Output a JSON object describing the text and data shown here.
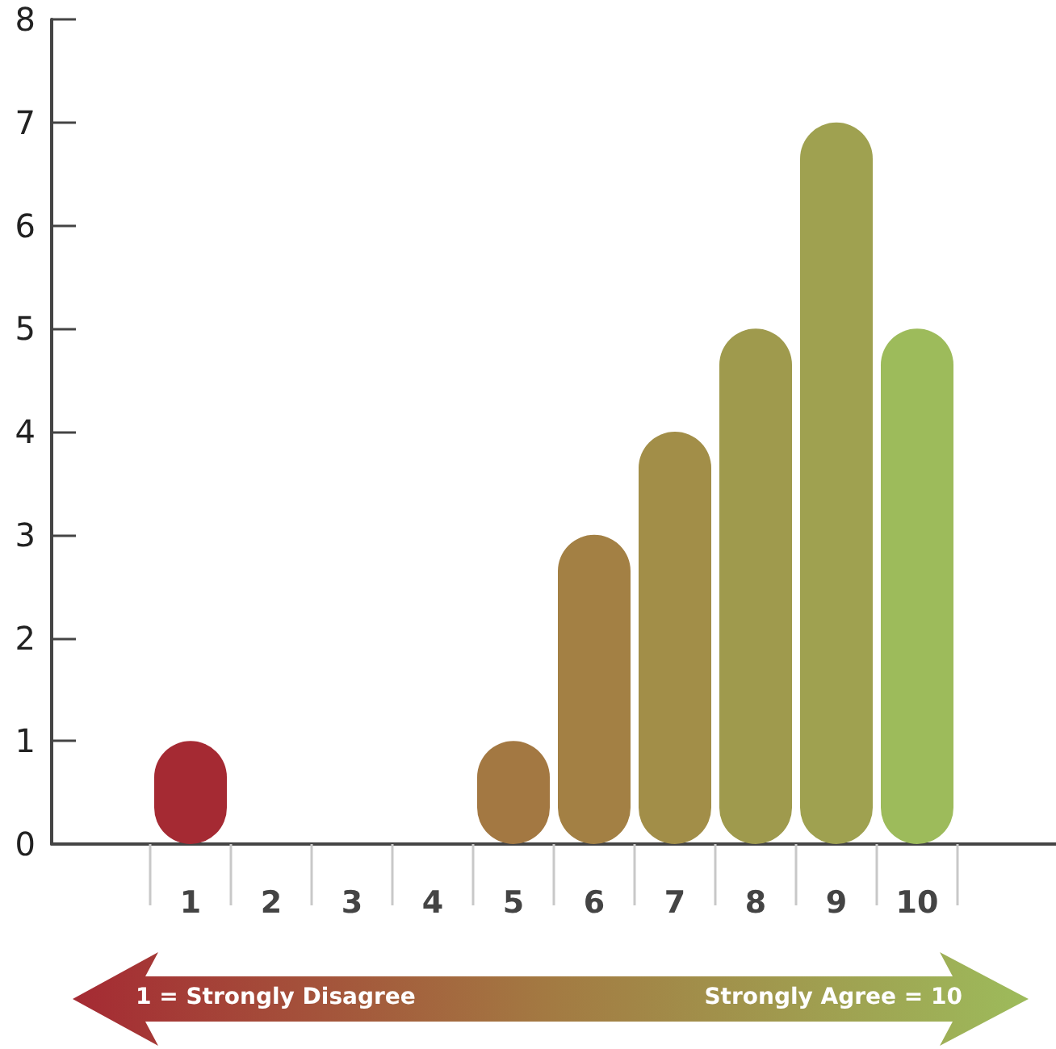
{
  "chart_data": {
    "type": "bar",
    "categories": [
      "1",
      "2",
      "3",
      "4",
      "5",
      "6",
      "7",
      "8",
      "9",
      "10"
    ],
    "values": [
      1,
      0,
      0,
      0,
      1,
      3,
      4,
      5,
      7,
      5
    ],
    "colors": [
      "#a52a33",
      "#a4403a",
      "#a3553e",
      "#a36a41",
      "#a37842",
      "#a38044",
      "#a28e48",
      "#9f9a4d",
      "#9fa150",
      "#9dbb5b"
    ],
    "ylim": [
      0,
      8
    ],
    "yticks": [
      0,
      1,
      2,
      3,
      4,
      5,
      6,
      7,
      8
    ],
    "annotations": [
      "1 = Strongly Disagree",
      "Strongly Agree = 10"
    ]
  }
}
